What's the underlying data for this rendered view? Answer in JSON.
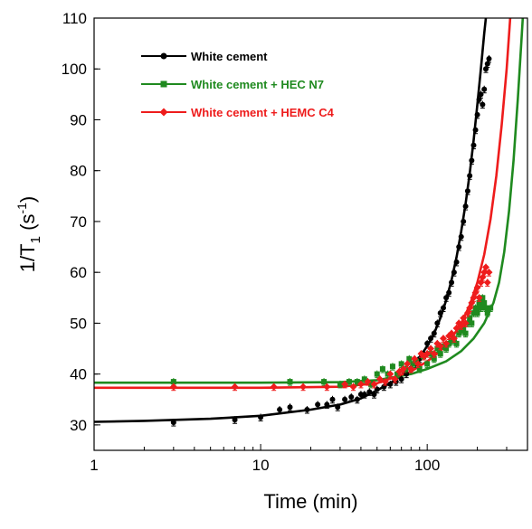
{
  "chart_data": {
    "type": "scatter",
    "title": "",
    "xlabel": "Time (min)",
    "ylabel_parts": {
      "main": "1/T",
      "sub": "1",
      "unit_open": " (s",
      "sup": "-1",
      "unit_close": ")"
    },
    "xscale": "log",
    "xlim": [
      1,
      400
    ],
    "ylim": [
      25,
      110
    ],
    "x_ticks": [
      {
        "value": 1,
        "label": "1"
      },
      {
        "value": 10,
        "label": "10"
      },
      {
        "value": 100,
        "label": "100"
      }
    ],
    "y_ticks": [
      30,
      40,
      50,
      60,
      70,
      80,
      90,
      100,
      110
    ],
    "grid": false,
    "legend_position": "top-left",
    "series": [
      {
        "name": "White cement",
        "color": "#000000",
        "marker": "circle",
        "points": [
          [
            3,
            30.5
          ],
          [
            7,
            31
          ],
          [
            10,
            31.5
          ],
          [
            13,
            33
          ],
          [
            15,
            33.5
          ],
          [
            19,
            33
          ],
          [
            22,
            34
          ],
          [
            25,
            34
          ],
          [
            27,
            35
          ],
          [
            29,
            33.5
          ],
          [
            32,
            35
          ],
          [
            35,
            35.5
          ],
          [
            38,
            35
          ],
          [
            40,
            36
          ],
          [
            42,
            36
          ],
          [
            45,
            36.5
          ],
          [
            48,
            36
          ],
          [
            50,
            37
          ],
          [
            55,
            37.5
          ],
          [
            60,
            38
          ],
          [
            65,
            38.5
          ],
          [
            70,
            39
          ],
          [
            75,
            40
          ],
          [
            80,
            41
          ],
          [
            85,
            42
          ],
          [
            90,
            43
          ],
          [
            95,
            44
          ],
          [
            100,
            46
          ],
          [
            105,
            47
          ],
          [
            110,
            48
          ],
          [
            115,
            50
          ],
          [
            120,
            52
          ],
          [
            125,
            53
          ],
          [
            130,
            55
          ],
          [
            135,
            56
          ],
          [
            140,
            58
          ],
          [
            145,
            60
          ],
          [
            150,
            62
          ],
          [
            155,
            65
          ],
          [
            160,
            67
          ],
          [
            165,
            70
          ],
          [
            170,
            73
          ],
          [
            175,
            76
          ],
          [
            180,
            79
          ],
          [
            185,
            82
          ],
          [
            190,
            85
          ],
          [
            195,
            88
          ],
          [
            200,
            91
          ],
          [
            205,
            94
          ],
          [
            210,
            95
          ],
          [
            215,
            93
          ],
          [
            220,
            96
          ],
          [
            225,
            100
          ],
          [
            230,
            101
          ],
          [
            235,
            102
          ]
        ],
        "fit": [
          [
            1,
            30.6
          ],
          [
            2,
            30.8
          ],
          [
            5,
            31.2
          ],
          [
            10,
            31.8
          ],
          [
            20,
            33
          ],
          [
            30,
            34
          ],
          [
            40,
            35.2
          ],
          [
            50,
            36.8
          ],
          [
            60,
            38.2
          ],
          [
            70,
            39.8
          ],
          [
            80,
            41.5
          ],
          [
            90,
            43.3
          ],
          [
            100,
            45.5
          ],
          [
            110,
            48
          ],
          [
            120,
            51
          ],
          [
            130,
            54.5
          ],
          [
            140,
            58.5
          ],
          [
            150,
            63
          ],
          [
            160,
            68
          ],
          [
            170,
            73.5
          ],
          [
            180,
            79.5
          ],
          [
            190,
            86
          ],
          [
            200,
            93
          ],
          [
            210,
            100
          ],
          [
            220,
            107
          ],
          [
            225,
            110
          ]
        ]
      },
      {
        "name": "White cement + HEC N7",
        "color": "#1f8a1f",
        "marker": "square",
        "points": [
          [
            3,
            38.5
          ],
          [
            15,
            38.5
          ],
          [
            24,
            38.5
          ],
          [
            30,
            38
          ],
          [
            34,
            38.5
          ],
          [
            38,
            38.5
          ],
          [
            42,
            39
          ],
          [
            46,
            38
          ],
          [
            50,
            40
          ],
          [
            54,
            41
          ],
          [
            58,
            40
          ],
          [
            62,
            41.5
          ],
          [
            66,
            40
          ],
          [
            70,
            42
          ],
          [
            74,
            41
          ],
          [
            78,
            43
          ],
          [
            82,
            42
          ],
          [
            86,
            42.5
          ],
          [
            90,
            41
          ],
          [
            95,
            43.5
          ],
          [
            100,
            42
          ],
          [
            105,
            44
          ],
          [
            110,
            43
          ],
          [
            115,
            45
          ],
          [
            120,
            44
          ],
          [
            125,
            45.5
          ],
          [
            130,
            45
          ],
          [
            135,
            46
          ],
          [
            140,
            46.5
          ],
          [
            145,
            47
          ],
          [
            150,
            46
          ],
          [
            155,
            48
          ],
          [
            160,
            48.5
          ],
          [
            165,
            49
          ],
          [
            170,
            48
          ],
          [
            175,
            50
          ],
          [
            180,
            51
          ],
          [
            185,
            50
          ],
          [
            190,
            52
          ],
          [
            195,
            53
          ],
          [
            200,
            52
          ],
          [
            205,
            54
          ],
          [
            210,
            53
          ],
          [
            215,
            55
          ],
          [
            220,
            54
          ],
          [
            225,
            53
          ],
          [
            230,
            52
          ],
          [
            240,
            53
          ]
        ],
        "fit": [
          [
            1,
            38.3
          ],
          [
            10,
            38.3
          ],
          [
            30,
            38.4
          ],
          [
            50,
            38.8
          ],
          [
            80,
            40
          ],
          [
            100,
            41
          ],
          [
            130,
            42.5
          ],
          [
            160,
            44.5
          ],
          [
            190,
            47
          ],
          [
            220,
            50
          ],
          [
            250,
            54
          ],
          [
            270,
            58
          ],
          [
            290,
            64
          ],
          [
            310,
            72
          ],
          [
            330,
            82
          ],
          [
            350,
            94
          ],
          [
            370,
            107
          ],
          [
            375,
            110
          ]
        ]
      },
      {
        "name": "White cement + HEMC C4",
        "color": "#ee1c1c",
        "marker": "diamond",
        "points": [
          [
            3,
            37.5
          ],
          [
            7,
            37.5
          ],
          [
            12,
            37.5
          ],
          [
            18,
            37.5
          ],
          [
            25,
            37.5
          ],
          [
            32,
            38
          ],
          [
            36,
            37.5
          ],
          [
            40,
            38
          ],
          [
            44,
            38.5
          ],
          [
            48,
            38
          ],
          [
            52,
            39
          ],
          [
            56,
            38.5
          ],
          [
            60,
            40
          ],
          [
            64,
            39
          ],
          [
            68,
            40.5
          ],
          [
            72,
            41
          ],
          [
            76,
            42
          ],
          [
            80,
            41
          ],
          [
            84,
            43
          ],
          [
            88,
            42
          ],
          [
            92,
            44
          ],
          [
            96,
            43.5
          ],
          [
            100,
            44
          ],
          [
            105,
            45
          ],
          [
            110,
            44
          ],
          [
            115,
            46
          ],
          [
            120,
            45.5
          ],
          [
            125,
            47
          ],
          [
            130,
            46
          ],
          [
            135,
            47.5
          ],
          [
            140,
            48
          ],
          [
            145,
            47
          ],
          [
            150,
            49
          ],
          [
            155,
            50
          ],
          [
            160,
            49.5
          ],
          [
            165,
            51
          ],
          [
            170,
            50
          ],
          [
            175,
            52
          ],
          [
            180,
            53
          ],
          [
            185,
            54
          ],
          [
            190,
            55
          ],
          [
            195,
            56
          ],
          [
            200,
            57
          ],
          [
            205,
            55
          ],
          [
            210,
            58
          ],
          [
            215,
            59
          ],
          [
            220,
            60
          ],
          [
            225,
            61
          ],
          [
            230,
            58
          ],
          [
            235,
            60
          ]
        ],
        "fit": [
          [
            1,
            37.3
          ],
          [
            10,
            37.3
          ],
          [
            30,
            37.5
          ],
          [
            50,
            38.2
          ],
          [
            80,
            40.5
          ],
          [
            100,
            42.5
          ],
          [
            120,
            44.5
          ],
          [
            140,
            47
          ],
          [
            160,
            50
          ],
          [
            180,
            53.5
          ],
          [
            200,
            58
          ],
          [
            220,
            63.5
          ],
          [
            240,
            70.5
          ],
          [
            260,
            79
          ],
          [
            280,
            89
          ],
          [
            300,
            100
          ],
          [
            315,
            110
          ]
        ]
      }
    ]
  }
}
